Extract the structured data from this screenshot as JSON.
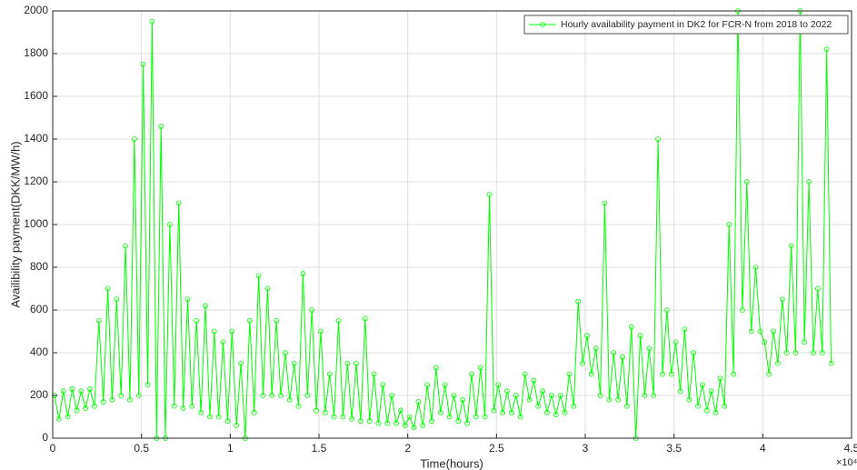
{
  "chart_data": {
    "type": "line",
    "xlabel": "Time(hours)",
    "ylabel": "Availibility payment(DKK/MW/h)",
    "x_exponent_label": "×10⁴",
    "legend": "top-right",
    "grid": true,
    "marker": "circle",
    "xlim": [
      0,
      45000
    ],
    "ylim": [
      0,
      2000
    ],
    "xticks": [
      0,
      {
        "value": 5000,
        "label": "0.5"
      },
      {
        "value": 10000,
        "label": "1"
      },
      {
        "value": 15000,
        "label": "1.5"
      },
      {
        "value": 20000,
        "label": "2"
      },
      {
        "value": 25000,
        "label": "2.5"
      },
      {
        "value": 30000,
        "label": "3"
      },
      {
        "value": 35000,
        "label": "3.5"
      },
      {
        "value": 40000,
        "label": "4"
      },
      {
        "value": 45000,
        "label": "4.5"
      }
    ],
    "yticks": [
      0,
      200,
      400,
      600,
      800,
      1000,
      1200,
      1400,
      1600,
      1800,
      2000
    ],
    "x": [
      100,
      350,
      600,
      850,
      1100,
      1350,
      1600,
      1850,
      2100,
      2350,
      2600,
      2850,
      3100,
      3350,
      3600,
      3850,
      4100,
      4350,
      4600,
      4850,
      5100,
      5350,
      5600,
      5850,
      6100,
      6350,
      6600,
      6850,
      7100,
      7350,
      7600,
      7850,
      8100,
      8350,
      8600,
      8850,
      9100,
      9350,
      9600,
      9850,
      10100,
      10350,
      10600,
      10850,
      11100,
      11350,
      11600,
      11850,
      12100,
      12350,
      12600,
      12850,
      13100,
      13350,
      13600,
      13850,
      14100,
      14350,
      14600,
      14850,
      15100,
      15350,
      15600,
      15850,
      16100,
      16350,
      16600,
      16850,
      17100,
      17350,
      17600,
      17850,
      18100,
      18350,
      18600,
      18850,
      19100,
      19350,
      19600,
      19850,
      20100,
      20350,
      20600,
      20850,
      21100,
      21350,
      21600,
      21850,
      22100,
      22350,
      22600,
      22850,
      23100,
      23350,
      23600,
      23850,
      24100,
      24350,
      24600,
      24850,
      25100,
      25350,
      25600,
      25850,
      26100,
      26350,
      26600,
      26850,
      27100,
      27350,
      27600,
      27850,
      28100,
      28350,
      28600,
      28850,
      29100,
      29350,
      29600,
      29850,
      30100,
      30350,
      30600,
      30850,
      31100,
      31350,
      31600,
      31850,
      32100,
      32350,
      32600,
      32850,
      33100,
      33350,
      33600,
      33850,
      34100,
      34350,
      34600,
      34850,
      35100,
      35350,
      35600,
      35850,
      36100,
      36350,
      36600,
      36850,
      37100,
      37350,
      37600,
      37850,
      38100,
      38350,
      38600,
      38850,
      39100,
      39350,
      39600,
      39850,
      40100,
      40350,
      40600,
      40850,
      41100,
      41350,
      41600,
      41850,
      42100,
      42350,
      42600,
      42850,
      43100,
      43350,
      43600,
      43850
    ],
    "series": [
      {
        "name": "Hourly availability payment in DK2 for FCR-N from 2018 to 2022",
        "color": "#00ff00",
        "values": [
          200,
          90,
          220,
          100,
          230,
          130,
          220,
          140,
          230,
          150,
          550,
          170,
          700,
          180,
          650,
          200,
          900,
          180,
          1400,
          200,
          1750,
          250,
          1950,
          0,
          1460,
          0,
          1000,
          150,
          1100,
          140,
          650,
          150,
          550,
          120,
          620,
          100,
          500,
          100,
          450,
          80,
          500,
          60,
          350,
          0,
          550,
          120,
          760,
          200,
          700,
          200,
          550,
          200,
          400,
          180,
          350,
          150,
          770,
          200,
          600,
          130,
          500,
          120,
          300,
          100,
          550,
          100,
          350,
          90,
          350,
          80,
          560,
          80,
          300,
          70,
          250,
          70,
          200,
          70,
          130,
          60,
          100,
          50,
          170,
          60,
          250,
          80,
          330,
          120,
          250,
          100,
          200,
          80,
          180,
          70,
          300,
          100,
          330,
          100,
          1140,
          130,
          250,
          120,
          220,
          120,
          200,
          100,
          300,
          180,
          270,
          150,
          220,
          120,
          200,
          110,
          200,
          120,
          300,
          150,
          640,
          350,
          480,
          300,
          420,
          200,
          1100,
          180,
          400,
          180,
          380,
          150,
          520,
          0,
          480,
          200,
          420,
          200,
          1400,
          300,
          600,
          300,
          450,
          220,
          510,
          180,
          400,
          150,
          250,
          130,
          220,
          120,
          280,
          150,
          1000,
          300,
          2000,
          600,
          1200,
          500,
          800,
          500,
          450,
          300,
          500,
          350,
          650,
          400,
          900,
          400,
          2000,
          450,
          1200,
          400,
          700,
          400,
          1820,
          350
        ]
      }
    ]
  }
}
